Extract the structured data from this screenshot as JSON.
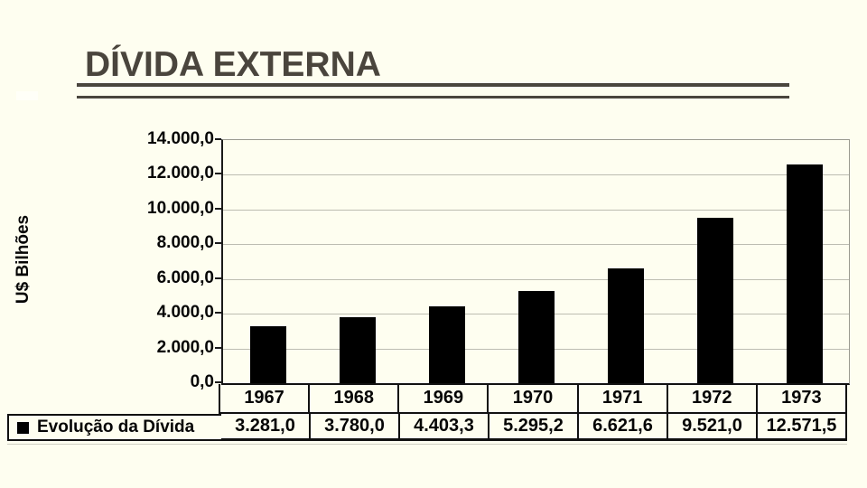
{
  "slide": {
    "title": "DÍVIDA EXTERNA"
  },
  "colors": {
    "background": "#FEFEF0",
    "title_text": "#4A453D",
    "rule": "#4A463E",
    "bar": "#000000",
    "gridline": "#BDBDB2",
    "axis": "#1A1A1A",
    "chart_text": "#050505"
  },
  "chart_data": {
    "type": "bar",
    "title": "DÍVIDA EXTERNA",
    "xlabel": "",
    "ylabel": "U$ Bilhões",
    "categories": [
      "1967",
      "1968",
      "1969",
      "1970",
      "1971",
      "1972",
      "1973"
    ],
    "series": [
      {
        "name": "Evolução da Dívida",
        "values": [
          3281.0,
          3780.0,
          4403.3,
          5295.2,
          6621.6,
          9521.0,
          12571.5
        ]
      }
    ],
    "value_labels": [
      "3.281,0",
      "3.780,0",
      "4.403,3",
      "5.295,2",
      "6.621,6",
      "9.521,0",
      "12.571,5"
    ],
    "yticks": [
      14000,
      12000,
      10000,
      8000,
      6000,
      4000,
      2000,
      0
    ],
    "ytick_labels": [
      "14.000,0",
      "12.000,0",
      "10.000,0",
      "8.000,0",
      "6.000,0",
      "4.000,0",
      "2.000,0",
      "0,0"
    ],
    "ylim": [
      0,
      14000
    ],
    "grid": true,
    "legend_position": "bottom-left",
    "legend_marker": "■",
    "bar_color": "#000000"
  }
}
